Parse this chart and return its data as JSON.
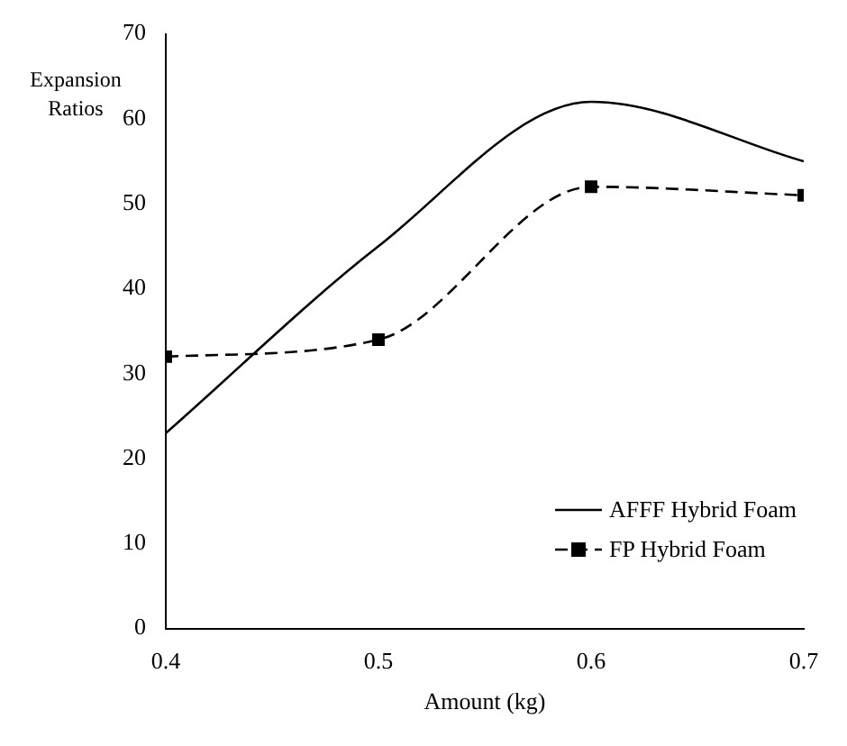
{
  "chart_data": {
    "type": "line",
    "ylabel": "Expansion Ratios",
    "xlabel": "Amount (kg)",
    "x": [
      0.4,
      0.5,
      0.6,
      0.7
    ],
    "series": [
      {
        "name": "AFFF Hybrid Foam",
        "color": "#000000",
        "values": [
          23,
          45,
          62,
          55
        ],
        "marker": "none",
        "line_style": "solid"
      },
      {
        "name": "FP Hybrid Foam",
        "color": "#000000",
        "values": [
          32,
          34,
          52,
          51
        ],
        "marker": "square",
        "line_style": "dashed"
      }
    ],
    "xlim": [
      0.4,
      0.7
    ],
    "xticks": [
      0.4,
      0.5,
      0.6,
      0.7
    ],
    "ylim": [
      0,
      70
    ],
    "yticks": [
      0,
      10,
      20,
      30,
      40,
      50,
      60,
      70
    ],
    "grid": false,
    "legend": "bottom right"
  }
}
